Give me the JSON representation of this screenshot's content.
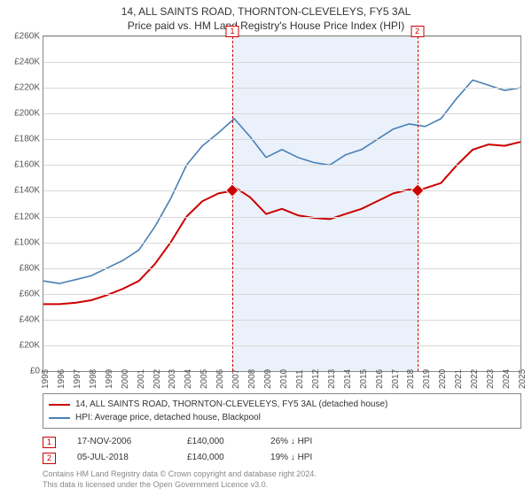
{
  "title_line1": "14, ALL SAINTS ROAD, THORNTON-CLEVELEYS, FY5 3AL",
  "title_line2": "Price paid vs. HM Land Registry's House Price Index (HPI)",
  "chart": {
    "type": "line",
    "background_color": "#ffffff",
    "grid_color": "#d8d8d8",
    "border_color": "#888888",
    "currency_prefix": "£",
    "ylim": [
      0,
      260000
    ],
    "ytick_step": 20000,
    "ytick_labels": [
      "£0",
      "£20K",
      "£40K",
      "£60K",
      "£80K",
      "£100K",
      "£120K",
      "£140K",
      "£160K",
      "£180K",
      "£200K",
      "£220K",
      "£240K",
      "£260K"
    ],
    "x_year_start": 1995,
    "x_year_end": 2025,
    "x_tick_labels": [
      "1995",
      "1996",
      "1997",
      "1998",
      "1999",
      "2000",
      "2001",
      "2002",
      "2003",
      "2004",
      "2005",
      "2006",
      "2007",
      "2008",
      "2009",
      "2010",
      "2011",
      "2012",
      "2013",
      "2014",
      "2015",
      "2016",
      "2017",
      "2018",
      "2019",
      "2020",
      "2021",
      "2022",
      "2023",
      "2024",
      "2025"
    ],
    "shade_band": {
      "enabled": true,
      "from_year": 2006.88,
      "to_year": 2018.51,
      "fill": "#eaf1fa"
    },
    "marker_dash_color": "#cc0000",
    "series": [
      {
        "name": "property",
        "color": "#cc0000",
        "width": 2,
        "points": [
          [
            1995,
            52000
          ],
          [
            1996,
            52000
          ],
          [
            1997,
            53000
          ],
          [
            1998,
            55000
          ],
          [
            1999,
            59000
          ],
          [
            2000,
            64000
          ],
          [
            2001,
            70000
          ],
          [
            2002,
            83000
          ],
          [
            2003,
            100000
          ],
          [
            2004,
            120000
          ],
          [
            2005,
            132000
          ],
          [
            2006,
            138000
          ],
          [
            2006.88,
            140000
          ],
          [
            2007,
            143000
          ],
          [
            2008,
            135000
          ],
          [
            2009,
            122000
          ],
          [
            2010,
            126000
          ],
          [
            2011,
            121000
          ],
          [
            2012,
            119000
          ],
          [
            2013,
            118000
          ],
          [
            2014,
            122000
          ],
          [
            2015,
            126000
          ],
          [
            2016,
            132000
          ],
          [
            2017,
            138000
          ],
          [
            2018,
            141000
          ],
          [
            2018.51,
            140000
          ],
          [
            2019,
            142000
          ],
          [
            2020,
            146000
          ],
          [
            2021,
            160000
          ],
          [
            2022,
            172000
          ],
          [
            2023,
            176000
          ],
          [
            2024,
            175000
          ],
          [
            2025,
            178000
          ]
        ]
      },
      {
        "name": "hpi",
        "color": "#4a7fb5",
        "width": 1.6,
        "points": [
          [
            1995,
            70000
          ],
          [
            1996,
            68000
          ],
          [
            1997,
            71000
          ],
          [
            1998,
            74000
          ],
          [
            1999,
            80000
          ],
          [
            2000,
            86000
          ],
          [
            2001,
            94000
          ],
          [
            2002,
            112000
          ],
          [
            2003,
            134000
          ],
          [
            2004,
            160000
          ],
          [
            2005,
            175000
          ],
          [
            2006,
            185000
          ],
          [
            2007,
            196000
          ],
          [
            2008,
            182000
          ],
          [
            2009,
            166000
          ],
          [
            2010,
            172000
          ],
          [
            2011,
            166000
          ],
          [
            2012,
            162000
          ],
          [
            2013,
            160000
          ],
          [
            2014,
            168000
          ],
          [
            2015,
            172000
          ],
          [
            2016,
            180000
          ],
          [
            2017,
            188000
          ],
          [
            2018,
            192000
          ],
          [
            2019,
            190000
          ],
          [
            2020,
            196000
          ],
          [
            2021,
            212000
          ],
          [
            2022,
            226000
          ],
          [
            2023,
            222000
          ],
          [
            2024,
            218000
          ],
          [
            2025,
            220000
          ]
        ]
      }
    ],
    "sale_markers": [
      {
        "label": "1",
        "year": 2006.88,
        "price": 140000
      },
      {
        "label": "2",
        "year": 2018.51,
        "price": 140000
      }
    ],
    "marker_style": {
      "shape": "diamond",
      "size": 9,
      "fill": "#cc0000",
      "stroke": "#ffffff"
    }
  },
  "legend": {
    "items": [
      {
        "color": "#cc0000",
        "text": "14, ALL SAINTS ROAD, THORNTON-CLEVELEYS, FY5 3AL (detached house)"
      },
      {
        "color": "#4a7fb5",
        "text": "HPI: Average price, detached house, Blackpool"
      }
    ]
  },
  "sales_table": {
    "rows": [
      {
        "marker": "1",
        "date": "17-NOV-2006",
        "price": "£140,000",
        "delta": "26% ↓ HPI"
      },
      {
        "marker": "2",
        "date": "05-JUL-2018",
        "price": "£140,000",
        "delta": "19% ↓ HPI"
      }
    ]
  },
  "footer_line1": "Contains HM Land Registry data © Crown copyright and database right 2024.",
  "footer_line2": "This data is licensed under the Open Government Licence v3.0."
}
